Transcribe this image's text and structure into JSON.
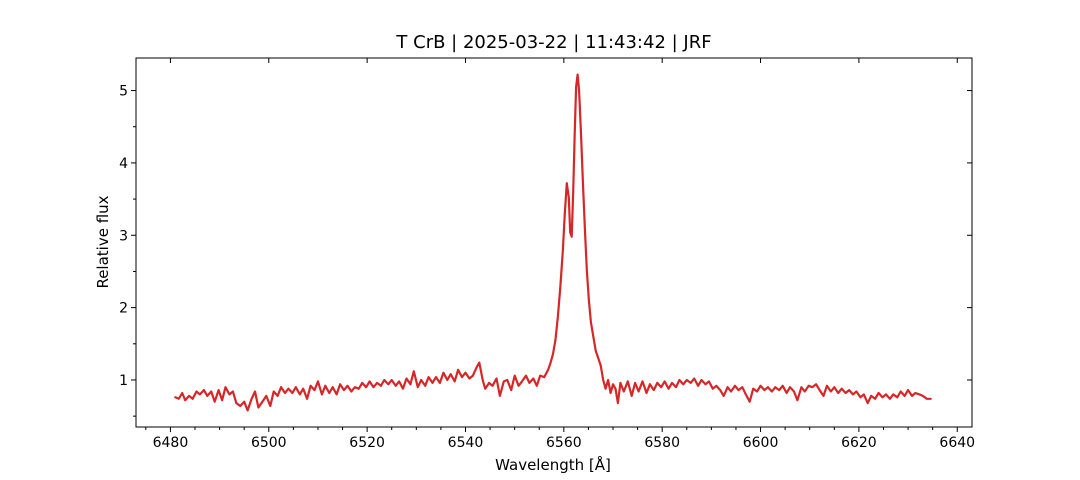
{
  "chart_data": {
    "type": "line",
    "title": "T CrB | 2025-03-22 | 11:43:42 | JRF",
    "xlabel": "Wavelength [Å]",
    "ylabel": "Relative flux",
    "xlim": [
      6473,
      6643
    ],
    "ylim": [
      0.35,
      5.45
    ],
    "xticks": [
      6480,
      6500,
      6520,
      6540,
      6560,
      6580,
      6600,
      6620,
      6640
    ],
    "yticks": [
      1,
      2,
      3,
      4,
      5
    ],
    "grid": false,
    "legend": "none",
    "series": [
      {
        "color": "#d62728",
        "points": [
          [
            6481.0,
            0.76
          ],
          [
            6481.7,
            0.74
          ],
          [
            6482.4,
            0.82
          ],
          [
            6483.0,
            0.72
          ],
          [
            6483.8,
            0.78
          ],
          [
            6484.5,
            0.74
          ],
          [
            6485.3,
            0.84
          ],
          [
            6486.0,
            0.8
          ],
          [
            6486.8,
            0.86
          ],
          [
            6487.5,
            0.78
          ],
          [
            6488.3,
            0.84
          ],
          [
            6489.0,
            0.7
          ],
          [
            6489.8,
            0.86
          ],
          [
            6490.5,
            0.72
          ],
          [
            6491.2,
            0.9
          ],
          [
            6492.0,
            0.8
          ],
          [
            6492.7,
            0.84
          ],
          [
            6493.4,
            0.68
          ],
          [
            6494.2,
            0.64
          ],
          [
            6495.0,
            0.7
          ],
          [
            6495.7,
            0.58
          ],
          [
            6496.5,
            0.74
          ],
          [
            6497.2,
            0.84
          ],
          [
            6497.9,
            0.62
          ],
          [
            6498.7,
            0.7
          ],
          [
            6499.5,
            0.78
          ],
          [
            6500.3,
            0.64
          ],
          [
            6501.0,
            0.84
          ],
          [
            6501.8,
            0.78
          ],
          [
            6502.5,
            0.9
          ],
          [
            6503.3,
            0.82
          ],
          [
            6504.0,
            0.88
          ],
          [
            6504.8,
            0.82
          ],
          [
            6505.5,
            0.9
          ],
          [
            6506.3,
            0.8
          ],
          [
            6507.0,
            0.88
          ],
          [
            6507.8,
            0.74
          ],
          [
            6508.5,
            0.92
          ],
          [
            6509.3,
            0.86
          ],
          [
            6510.0,
            0.98
          ],
          [
            6510.8,
            0.8
          ],
          [
            6511.5,
            0.92
          ],
          [
            6512.3,
            0.82
          ],
          [
            6513.0,
            0.9
          ],
          [
            6513.8,
            0.8
          ],
          [
            6514.5,
            0.94
          ],
          [
            6515.3,
            0.86
          ],
          [
            6516.0,
            0.92
          ],
          [
            6516.8,
            0.84
          ],
          [
            6517.5,
            0.9
          ],
          [
            6518.3,
            0.88
          ],
          [
            6519.0,
            0.96
          ],
          [
            6519.8,
            0.9
          ],
          [
            6520.5,
            0.98
          ],
          [
            6521.3,
            0.9
          ],
          [
            6522.0,
            0.96
          ],
          [
            6522.8,
            0.92
          ],
          [
            6523.5,
            1.0
          ],
          [
            6524.3,
            0.94
          ],
          [
            6525.0,
            1.0
          ],
          [
            6525.8,
            0.92
          ],
          [
            6526.5,
            0.98
          ],
          [
            6527.3,
            0.88
          ],
          [
            6528.0,
            1.02
          ],
          [
            6528.8,
            0.94
          ],
          [
            6529.5,
            1.12
          ],
          [
            6530.3,
            0.9
          ],
          [
            6531.0,
            1.0
          ],
          [
            6531.8,
            0.92
          ],
          [
            6532.5,
            1.04
          ],
          [
            6533.3,
            0.96
          ],
          [
            6534.0,
            1.04
          ],
          [
            6534.8,
            0.96
          ],
          [
            6535.5,
            1.1
          ],
          [
            6536.3,
            1.0
          ],
          [
            6537.0,
            1.08
          ],
          [
            6537.8,
            0.98
          ],
          [
            6538.5,
            1.14
          ],
          [
            6539.3,
            1.04
          ],
          [
            6540.0,
            1.1
          ],
          [
            6540.8,
            1.02
          ],
          [
            6541.5,
            1.06
          ],
          [
            6542.3,
            1.18
          ],
          [
            6542.8,
            1.24
          ],
          [
            6543.5,
            1.0
          ],
          [
            6544.0,
            0.88
          ],
          [
            6544.8,
            0.96
          ],
          [
            6545.5,
            0.92
          ],
          [
            6546.3,
            1.02
          ],
          [
            6547.0,
            0.78
          ],
          [
            6547.8,
            0.98
          ],
          [
            6548.5,
            1.0
          ],
          [
            6549.3,
            0.86
          ],
          [
            6550.0,
            1.06
          ],
          [
            6550.8,
            0.92
          ],
          [
            6551.5,
            0.98
          ],
          [
            6552.3,
            1.06
          ],
          [
            6553.0,
            0.96
          ],
          [
            6553.8,
            1.02
          ],
          [
            6554.5,
            0.92
          ],
          [
            6555.2,
            1.06
          ],
          [
            6556.0,
            1.04
          ],
          [
            6556.8,
            1.14
          ],
          [
            6557.3,
            1.24
          ],
          [
            6557.8,
            1.36
          ],
          [
            6558.3,
            1.56
          ],
          [
            6558.8,
            1.88
          ],
          [
            6559.3,
            2.3
          ],
          [
            6559.8,
            2.8
          ],
          [
            6560.2,
            3.3
          ],
          [
            6560.6,
            3.72
          ],
          [
            6561.0,
            3.52
          ],
          [
            6561.3,
            3.04
          ],
          [
            6561.6,
            2.98
          ],
          [
            6561.9,
            3.6
          ],
          [
            6562.2,
            4.4
          ],
          [
            6562.5,
            5.05
          ],
          [
            6562.8,
            5.22
          ],
          [
            6563.1,
            5.0
          ],
          [
            6563.5,
            4.4
          ],
          [
            6563.9,
            3.7
          ],
          [
            6564.3,
            3.05
          ],
          [
            6564.7,
            2.5
          ],
          [
            6565.1,
            2.1
          ],
          [
            6565.5,
            1.8
          ],
          [
            6566.0,
            1.6
          ],
          [
            6566.5,
            1.4
          ],
          [
            6567.0,
            1.3
          ],
          [
            6567.5,
            1.2
          ],
          [
            6568.0,
            1.0
          ],
          [
            6568.5,
            0.88
          ],
          [
            6569.0,
            1.0
          ],
          [
            6569.5,
            0.82
          ],
          [
            6570.0,
            0.94
          ],
          [
            6570.5,
            0.88
          ],
          [
            6571.0,
            0.68
          ],
          [
            6571.5,
            0.96
          ],
          [
            6572.2,
            0.84
          ],
          [
            6573.0,
            0.98
          ],
          [
            6573.8,
            0.78
          ],
          [
            6574.5,
            0.96
          ],
          [
            6575.2,
            0.84
          ],
          [
            6576.0,
            0.98
          ],
          [
            6576.8,
            0.82
          ],
          [
            6577.5,
            0.94
          ],
          [
            6578.3,
            0.86
          ],
          [
            6579.0,
            0.96
          ],
          [
            6579.8,
            0.9
          ],
          [
            6580.5,
            0.98
          ],
          [
            6581.3,
            0.88
          ],
          [
            6582.0,
            0.96
          ],
          [
            6582.8,
            0.9
          ],
          [
            6583.5,
            1.0
          ],
          [
            6584.3,
            0.94
          ],
          [
            6585.0,
            1.0
          ],
          [
            6585.8,
            0.96
          ],
          [
            6586.5,
            1.02
          ],
          [
            6587.3,
            0.92
          ],
          [
            6588.0,
            1.0
          ],
          [
            6588.8,
            0.94
          ],
          [
            6589.5,
            0.98
          ],
          [
            6590.3,
            0.88
          ],
          [
            6591.0,
            0.92
          ],
          [
            6591.8,
            0.86
          ],
          [
            6592.5,
            0.78
          ],
          [
            6593.3,
            0.9
          ],
          [
            6594.0,
            0.84
          ],
          [
            6594.8,
            0.92
          ],
          [
            6595.5,
            0.86
          ],
          [
            6596.3,
            0.9
          ],
          [
            6597.0,
            0.8
          ],
          [
            6597.8,
            0.7
          ],
          [
            6598.5,
            0.88
          ],
          [
            6599.3,
            0.84
          ],
          [
            6600.0,
            0.92
          ],
          [
            6600.8,
            0.86
          ],
          [
            6601.5,
            0.9
          ],
          [
            6602.3,
            0.84
          ],
          [
            6603.0,
            0.9
          ],
          [
            6603.8,
            0.86
          ],
          [
            6604.5,
            0.92
          ],
          [
            6605.3,
            0.82
          ],
          [
            6606.0,
            0.9
          ],
          [
            6606.8,
            0.84
          ],
          [
            6607.5,
            0.72
          ],
          [
            6608.3,
            0.9
          ],
          [
            6609.0,
            0.84
          ],
          [
            6609.8,
            0.92
          ],
          [
            6610.5,
            0.9
          ],
          [
            6611.3,
            0.94
          ],
          [
            6612.0,
            0.86
          ],
          [
            6612.8,
            0.78
          ],
          [
            6613.5,
            0.92
          ],
          [
            6614.3,
            0.84
          ],
          [
            6615.0,
            0.9
          ],
          [
            6615.8,
            0.82
          ],
          [
            6616.5,
            0.88
          ],
          [
            6617.3,
            0.82
          ],
          [
            6618.0,
            0.86
          ],
          [
            6618.8,
            0.8
          ],
          [
            6619.5,
            0.84
          ],
          [
            6620.3,
            0.76
          ],
          [
            6621.0,
            0.8
          ],
          [
            6621.8,
            0.68
          ],
          [
            6622.5,
            0.78
          ],
          [
            6623.3,
            0.74
          ],
          [
            6624.0,
            0.82
          ],
          [
            6624.8,
            0.76
          ],
          [
            6625.5,
            0.8
          ],
          [
            6626.3,
            0.74
          ],
          [
            6627.0,
            0.8
          ],
          [
            6627.8,
            0.76
          ],
          [
            6628.5,
            0.84
          ],
          [
            6629.3,
            0.78
          ],
          [
            6630.0,
            0.86
          ],
          [
            6630.8,
            0.78
          ],
          [
            6631.5,
            0.82
          ],
          [
            6632.3,
            0.8
          ],
          [
            6633.0,
            0.78
          ],
          [
            6633.8,
            0.74
          ],
          [
            6634.6,
            0.74
          ]
        ]
      }
    ]
  }
}
